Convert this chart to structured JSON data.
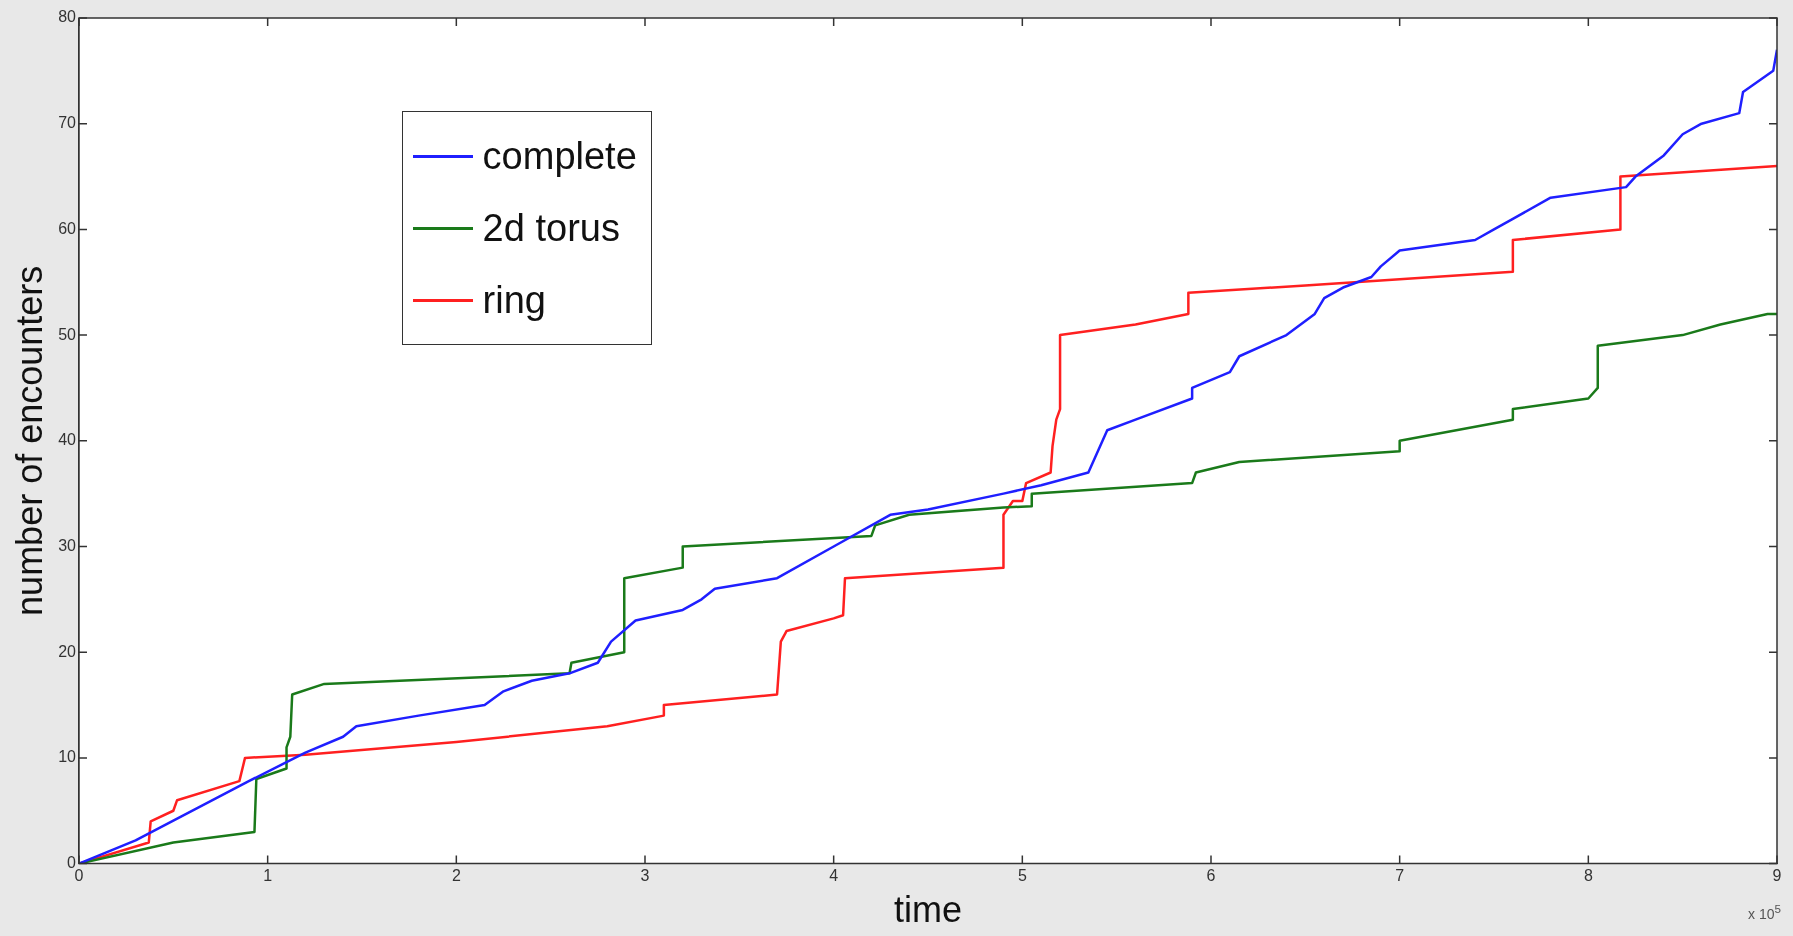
{
  "chart_data": {
    "type": "line",
    "xlabel": "time",
    "ylabel": "number of encounters",
    "annotations": [
      "x 10$^{5}$"
    ],
    "legend": "top left",
    "xlim": [
      0,
      9
    ],
    "xticks": [
      0,
      1,
      2,
      3,
      4,
      5,
      6,
      7,
      8,
      9
    ],
    "ylim": [
      0,
      80
    ],
    "yticks": [
      0,
      10,
      20,
      30,
      40,
      50,
      60,
      70,
      80
    ],
    "series": [
      {
        "name": "complete",
        "color": "#1f1fff",
        "x": [
          0,
          0.3,
          0.9,
          1.2,
          1.4,
          1.47,
          1.8,
          2.15,
          2.25,
          2.4,
          2.6,
          2.75,
          2.82,
          2.95,
          3.2,
          3.3,
          3.37,
          3.7,
          4.0,
          4.3,
          4.5,
          4.9,
          5.1,
          5.35,
          5.45,
          5.6,
          5.9,
          5.9,
          6.1,
          6.15,
          6.4,
          6.55,
          6.6,
          6.7,
          6.85,
          6.9,
          7.0,
          7.4,
          7.5,
          7.6,
          7.8,
          8.2,
          8.25,
          8.4,
          8.5,
          8.6,
          8.8,
          8.82,
          8.98,
          9.0
        ],
        "values": [
          0,
          2.2,
          7.8,
          10.5,
          12,
          13,
          14,
          15,
          16.3,
          17.3,
          18,
          19,
          21,
          23,
          24,
          25,
          26,
          27,
          30,
          33,
          33.5,
          35,
          35.8,
          37,
          41,
          42,
          44,
          45,
          46.5,
          48,
          50,
          52,
          53.5,
          54.5,
          55.5,
          56.5,
          58,
          59,
          60,
          61,
          63,
          64,
          65,
          67,
          69,
          70,
          71,
          73,
          75,
          77
        ]
      },
      {
        "name": "2d torus",
        "color": "#1a7a1a",
        "x": [
          0,
          0.5,
          0.93,
          0.94,
          1.1,
          1.1,
          1.12,
          1.13,
          1.3,
          2.6,
          2.61,
          2.89,
          2.89,
          3.2,
          3.2,
          4.2,
          4.22,
          4.4,
          4.9,
          5.05,
          5.05,
          5.9,
          5.92,
          6.15,
          7.0,
          7.0,
          7.6,
          7.6,
          8.0,
          8.05,
          8.05,
          8.5,
          8.7,
          8.95,
          9.0
        ],
        "values": [
          0,
          2,
          3,
          8,
          9,
          11,
          12,
          16,
          17,
          18,
          19,
          20,
          27,
          28,
          30,
          31,
          32,
          33,
          33.7,
          33.8,
          35,
          36,
          37,
          38,
          39,
          40,
          42,
          43,
          44,
          45,
          49,
          50,
          51,
          52,
          52
        ]
      },
      {
        "name": "ring",
        "color": "#ff2020",
        "x": [
          0,
          0.37,
          0.38,
          0.5,
          0.52,
          0.85,
          0.88,
          1.2,
          2.0,
          2.8,
          3.1,
          3.1,
          3.7,
          3.72,
          3.75,
          4.0,
          4.05,
          4.06,
          4.9,
          4.9,
          4.95,
          5.0,
          5.02,
          5.15,
          5.16,
          5.18,
          5.2,
          5.2,
          5.6,
          5.88,
          5.88,
          6.5,
          7.6,
          7.6,
          8.17,
          8.17,
          9.0
        ],
        "values": [
          0,
          2,
          4,
          5,
          6,
          7.8,
          10,
          10.3,
          11.5,
          13,
          14,
          15,
          16,
          21,
          22,
          23.2,
          23.5,
          27,
          28,
          33,
          34.3,
          34.3,
          36,
          37,
          39.5,
          42,
          43,
          50,
          51,
          52,
          54,
          54.7,
          56,
          59,
          60,
          65,
          66
        ]
      }
    ]
  }
}
